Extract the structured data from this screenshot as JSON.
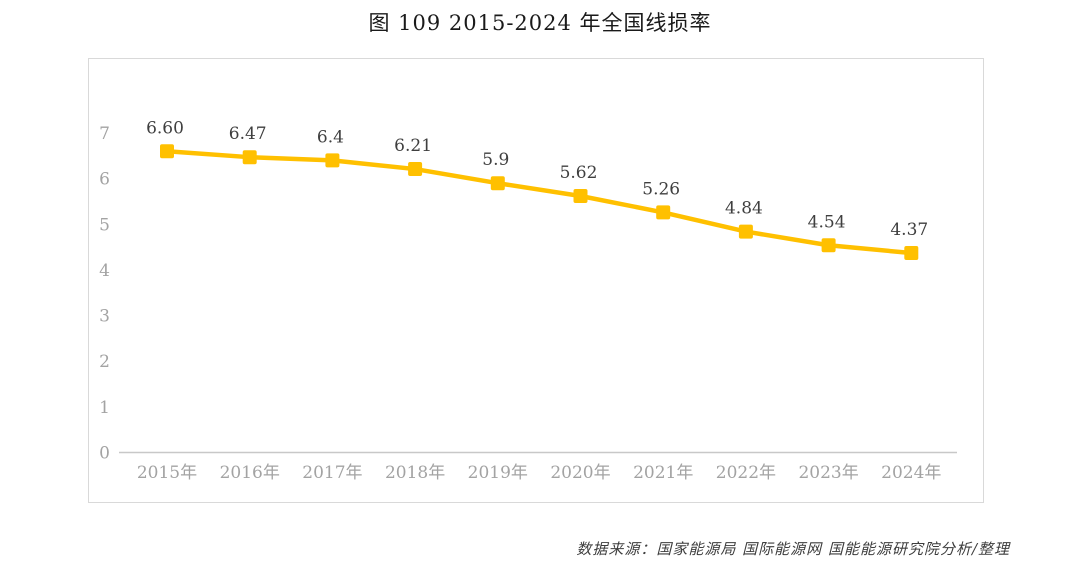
{
  "title": "图 109 2015-2024 年全国线损率",
  "source": "数据来源：国家能源局 国际能源网 国能能源研究院分析/整理",
  "colors": {
    "line": "#FFC000",
    "marker": "#FFC000",
    "axis_line": "#c8c8c8",
    "tick_text": "#a3a3a3",
    "label_text": "#3f3f3f",
    "frame_border": "#d9d9d9"
  },
  "chart_data": {
    "type": "line",
    "title": "图 109 2015-2024 年全国线损率",
    "categories": [
      "2015年",
      "2016年",
      "2017年",
      "2018年",
      "2019年",
      "2020年",
      "2021年",
      "2022年",
      "2023年",
      "2024年"
    ],
    "series": [
      {
        "name": "全国线损率",
        "values": [
          6.6,
          6.47,
          6.4,
          6.21,
          5.9,
          5.62,
          5.26,
          4.84,
          4.54,
          4.37
        ],
        "labels": [
          "6.60",
          "6.47",
          "6.4",
          "6.21",
          "5.9",
          "5.62",
          "5.26",
          "4.84",
          "4.54",
          "4.37"
        ]
      }
    ],
    "xlabel": "",
    "ylabel": "",
    "ylim": [
      0,
      7
    ],
    "yticks": [
      0,
      1,
      2,
      3,
      4,
      5,
      6,
      7
    ],
    "grid": false,
    "legend_position": "none",
    "marker_shape": "square"
  }
}
